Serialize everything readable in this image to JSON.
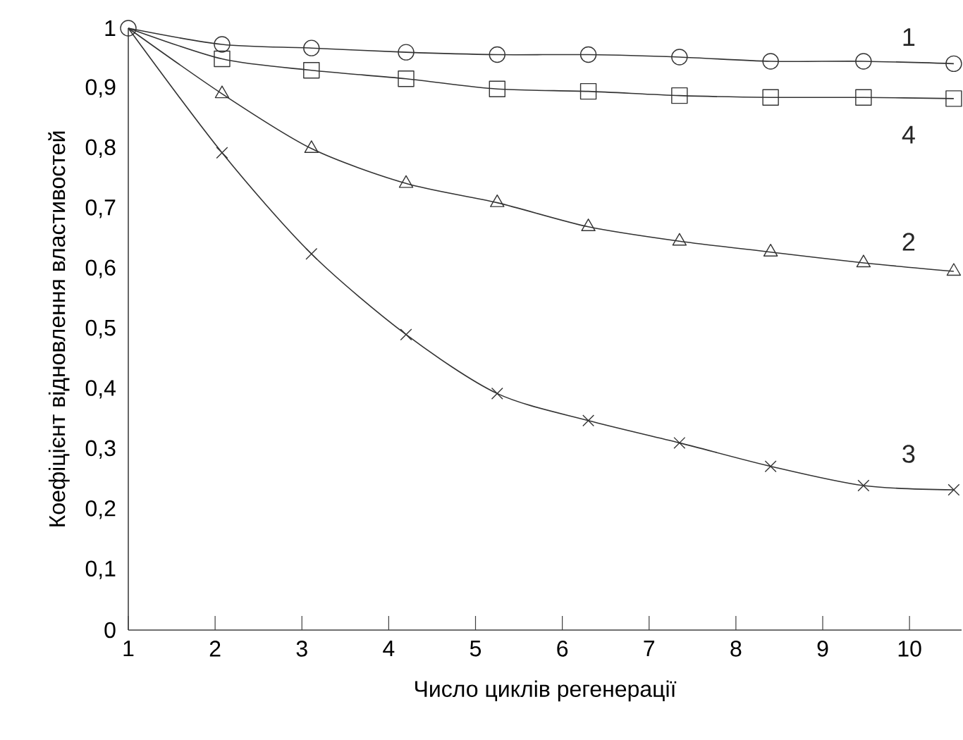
{
  "chart_data": {
    "type": "line",
    "xlabel": "Число циклів регенерації",
    "ylabel": "Коефіцієнт відновлення властивостей",
    "xlim": [
      1,
      10.6
    ],
    "ylim": [
      0,
      1
    ],
    "xticks": [
      1,
      2,
      3,
      4,
      5,
      6,
      7,
      8,
      9,
      10
    ],
    "yticks": [
      0,
      {
        "value": 0.1,
        "label": "0,1"
      },
      {
        "value": 0.2,
        "label": "0,2"
      },
      {
        "value": 0.3,
        "label": "0,3"
      },
      {
        "value": 0.4,
        "label": "0,4"
      },
      {
        "value": 0.5,
        "label": "0,5"
      },
      {
        "value": 0.6,
        "label": "0,6"
      },
      {
        "value": 0.7,
        "label": "0,7"
      },
      {
        "value": 0.8,
        "label": "0,8"
      },
      {
        "value": 0.9,
        "label": "0,9"
      },
      1
    ],
    "x": [
      1,
      2.08,
      3.11,
      4.2,
      5.25,
      6.3,
      7.35,
      8.4,
      9.47,
      10.51
    ],
    "series": [
      {
        "color": "#333333",
        "marker": "circle",
        "values": [
          1,
          0.973,
          0.967,
          0.96,
          0.956,
          0.956,
          0.952,
          0.945,
          0.945,
          0.941
        ]
      },
      {
        "color": "#333333",
        "marker": "square",
        "values": [
          1,
          0.949,
          0.93,
          0.916,
          0.899,
          0.895,
          0.888,
          0.885,
          0.885,
          0.883
        ]
      },
      {
        "color": "#333333",
        "marker": "triangle",
        "values": [
          1,
          0.891,
          0.8,
          0.742,
          0.71,
          0.67,
          0.646,
          0.628,
          0.61,
          0.596
        ]
      },
      {
        "color": "#333333",
        "marker": "cross",
        "values": [
          1,
          0.793,
          0.625,
          0.491,
          0.393,
          0.348,
          0.311,
          0.272,
          0.24,
          0.233
        ]
      }
    ],
    "annotations": [
      "1",
      "4",
      "2",
      "3"
    ],
    "grid": false
  }
}
